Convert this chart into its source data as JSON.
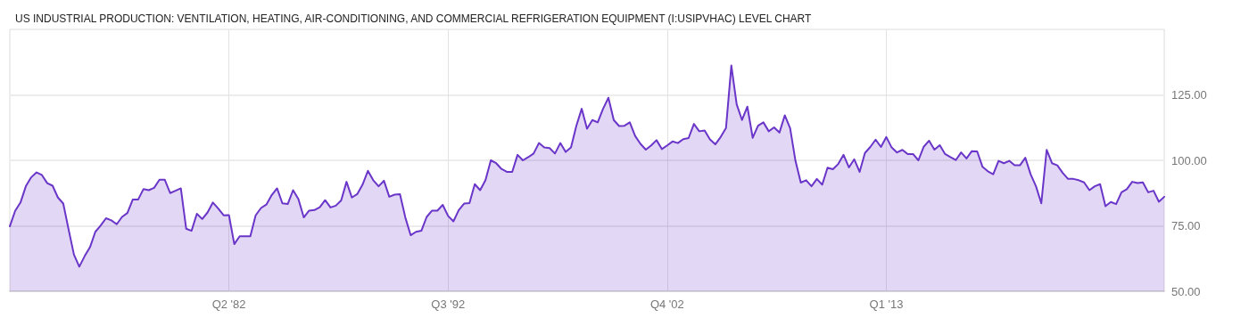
{
  "chart_data": {
    "type": "area",
    "title": "US INDUSTRIAL PRODUCTION: VENTILATION, HEATING, AIR-CONDITIONING, AND COMMERCIAL REFRIGERATION EQUIPMENT (I:USIPVHAC) LEVEL CHART",
    "categories": [
      null,
      null,
      null,
      null,
      null,
      null,
      null,
      null,
      null,
      null,
      null,
      null,
      null,
      null,
      null,
      null,
      null,
      null,
      null,
      null,
      null,
      null,
      null,
      null,
      null,
      null,
      null,
      null,
      null,
      null,
      null,
      null,
      null,
      null,
      null,
      null,
      null,
      null,
      null,
      null,
      null,
      "Q2 '82",
      null,
      null,
      null,
      null,
      null,
      null,
      null,
      null,
      null,
      null,
      null,
      null,
      null,
      null,
      null,
      null,
      null,
      null,
      null,
      null,
      null,
      null,
      null,
      null,
      null,
      null,
      null,
      null,
      null,
      null,
      null,
      null,
      null,
      null,
      null,
      null,
      null,
      null,
      null,
      null,
      "Q3 '92",
      null,
      null,
      null,
      null,
      null,
      null,
      null,
      null,
      null,
      null,
      null,
      null,
      null,
      null,
      null,
      null,
      null,
      null,
      null,
      null,
      null,
      null,
      null,
      null,
      null,
      null,
      null,
      null,
      null,
      null,
      null,
      null,
      null,
      null,
      null,
      null,
      null,
      null,
      null,
      null,
      "Q4 '02",
      null,
      null,
      null,
      null,
      null,
      null,
      null,
      null,
      null,
      null,
      null,
      null,
      null,
      null,
      null,
      null,
      null,
      null,
      null,
      null,
      null,
      null,
      null,
      null,
      null,
      null,
      null,
      null,
      null,
      null,
      null,
      null,
      null,
      null,
      null,
      null,
      null,
      null,
      null,
      null,
      "Q1 '13",
      null,
      null,
      null,
      null,
      null,
      null,
      null,
      null,
      null,
      null,
      null,
      null,
      null,
      null,
      null,
      null,
      null,
      null,
      null,
      null,
      null,
      null,
      null,
      null,
      null,
      null,
      null,
      null,
      null,
      null,
      null,
      null,
      null,
      null,
      null,
      null,
      null,
      null,
      null,
      null,
      null,
      null,
      null,
      null,
      null,
      null,
      null,
      null,
      null,
      null,
      null,
      null
    ],
    "series": [
      {
        "color": "#6a35c9",
        "values": [
          74.8,
          80.7,
          83.9,
          90.1,
          93.5,
          95.4,
          94.4,
          91.3,
          90.3,
          85.8,
          83.5,
          73.6,
          64.0,
          59.4,
          63.4,
          66.8,
          72.7,
          75.1,
          77.9,
          77.1,
          75.6,
          78.4,
          79.9,
          85.0,
          85.0,
          89.0,
          88.6,
          89.5,
          92.6,
          92.6,
          87.5,
          88.4,
          89.3,
          73.9,
          73.1,
          79.6,
          77.6,
          80.1,
          83.9,
          81.6,
          79.0,
          79.1,
          68.0,
          71.0,
          71.0,
          71.0,
          79.0,
          81.8,
          83.1,
          86.7,
          89.3,
          83.6,
          83.3,
          88.6,
          85.2,
          78.2,
          80.8,
          81.0,
          82.1,
          84.8,
          82.0,
          82.7,
          84.7,
          91.8,
          85.8,
          87.1,
          90.7,
          96.0,
          92.4,
          90.1,
          92.2,
          86.1,
          86.9,
          87.1,
          78.2,
          71.4,
          72.7,
          73.1,
          78.4,
          80.8,
          80.8,
          83.0,
          78.8,
          76.7,
          81.0,
          83.5,
          83.7,
          90.9,
          88.6,
          92.4,
          100.0,
          98.9,
          96.7,
          95.6,
          95.6,
          102.1,
          100.0,
          101.2,
          102.6,
          106.6,
          104.9,
          104.7,
          102.6,
          106.6,
          103.2,
          104.9,
          113.2,
          119.7,
          112.1,
          115.4,
          114.5,
          119.7,
          123.9,
          115.4,
          113.1,
          113.2,
          114.5,
          109.3,
          106.3,
          104.1,
          105.7,
          107.7,
          104.3,
          105.7,
          107.2,
          106.6,
          108.1,
          108.5,
          113.9,
          111.1,
          111.4,
          108.0,
          106.1,
          108.9,
          112.3,
          136.2,
          121.4,
          115.4,
          120.5,
          108.6,
          113.2,
          114.5,
          111.1,
          112.6,
          110.6,
          117.2,
          112.3,
          99.8,
          91.5,
          92.4,
          90.1,
          92.9,
          90.7,
          97.2,
          96.6,
          98.6,
          102.1,
          97.3,
          100.4,
          95.6,
          102.8,
          105.1,
          107.9,
          105.1,
          108.9,
          104.9,
          103.0,
          104.0,
          102.4,
          102.4,
          100.0,
          105.2,
          107.5,
          104.1,
          105.8,
          102.4,
          101.2,
          100.1,
          103.0,
          100.7,
          103.5,
          103.4,
          97.5,
          95.8,
          94.7,
          99.8,
          98.9,
          99.8,
          98.1,
          98.1,
          101.0,
          94.7,
          90.1,
          83.6,
          104.0,
          98.9,
          98.1,
          95.2,
          92.9,
          92.9,
          92.4,
          91.6,
          88.6,
          90.1,
          90.9,
          82.5,
          84.1,
          83.3,
          87.8,
          89.0,
          91.8,
          91.3,
          91.6,
          87.8,
          88.4,
          84.2,
          86.1
        ]
      }
    ],
    "ylim": [
      50,
      150
    ],
    "yticks": [
      {
        "value": 50,
        "label": "50.00"
      },
      {
        "value": 75,
        "label": "75.00"
      },
      {
        "value": 100,
        "label": "100.00"
      },
      {
        "value": 125,
        "label": "125.00"
      }
    ],
    "grid": true,
    "marker": "none",
    "line_style": "solid"
  }
}
